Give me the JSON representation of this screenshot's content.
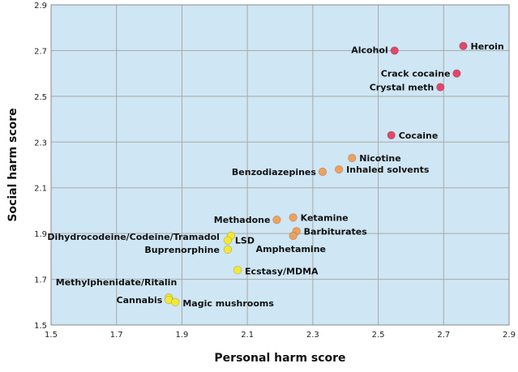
{
  "chart_data": {
    "type": "scatter",
    "title": "",
    "xlabel": "Personal harm score",
    "ylabel": "Social harm score",
    "xlim": [
      1.5,
      2.9
    ],
    "ylim": [
      1.5,
      2.9
    ],
    "x_ticks": [
      "1.5",
      "1.7",
      "1.9",
      "2.1",
      "2.3",
      "2.5",
      "2.7",
      "2.9"
    ],
    "y_ticks": [
      "1.5",
      "1.7",
      "1.9",
      "2.1",
      "2.3",
      "2.5",
      "2.7",
      "2.9"
    ],
    "grid": true,
    "plot_background": "#cfe6f4",
    "colors": {
      "red": "#e0476a",
      "orange": "#f0a05a",
      "yellow": "#f5e830"
    },
    "points": [
      {
        "label": "Heroin",
        "x": 2.76,
        "y": 2.72,
        "color": "red"
      },
      {
        "label": "Alcohol",
        "x": 2.55,
        "y": 2.7,
        "color": "red"
      },
      {
        "label": "Crack cocaine",
        "x": 2.74,
        "y": 2.6,
        "color": "red"
      },
      {
        "label": "Crystal meth",
        "x": 2.69,
        "y": 2.54,
        "color": "red"
      },
      {
        "label": "Cocaine",
        "x": 2.54,
        "y": 2.33,
        "color": "red"
      },
      {
        "label": "Nicotine",
        "x": 2.42,
        "y": 2.23,
        "color": "orange"
      },
      {
        "label": "Inhaled solvents",
        "x": 2.38,
        "y": 2.18,
        "color": "orange"
      },
      {
        "label": "Benzodiazepines",
        "x": 2.33,
        "y": 2.17,
        "color": "orange"
      },
      {
        "label": "Ketamine",
        "x": 2.24,
        "y": 1.97,
        "color": "orange"
      },
      {
        "label": "Methadone",
        "x": 2.19,
        "y": 1.96,
        "color": "orange"
      },
      {
        "label": "Barbiturates",
        "x": 2.25,
        "y": 1.91,
        "color": "orange"
      },
      {
        "label": "Amphetamine",
        "x": 2.24,
        "y": 1.89,
        "color": "orange"
      },
      {
        "label": "Dihydrocodeine/Codeine/Tramadol",
        "x": 2.05,
        "y": 1.89,
        "color": "yellow"
      },
      {
        "label": "LSD",
        "x": 2.04,
        "y": 1.87,
        "color": "yellow"
      },
      {
        "label": "Buprenorphine",
        "x": 2.04,
        "y": 1.83,
        "color": "yellow"
      },
      {
        "label": "Ecstasy/MDMA",
        "x": 2.07,
        "y": 1.74,
        "color": "yellow"
      },
      {
        "label": "Methylphenidate/Ritalin",
        "x": 1.86,
        "y": 1.62,
        "color": "yellow"
      },
      {
        "label": "Cannabis",
        "x": 1.86,
        "y": 1.61,
        "color": "yellow"
      },
      {
        "label": "Magic mushrooms",
        "x": 1.88,
        "y": 1.6,
        "color": "yellow"
      }
    ]
  }
}
